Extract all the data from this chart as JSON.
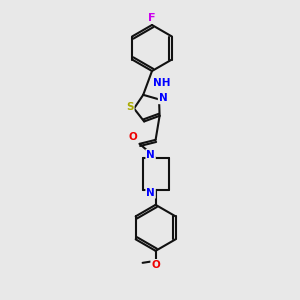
{
  "bg": "#e8e8e8",
  "bond_color": "#111111",
  "bond_lw": 1.5,
  "atom_colors": {
    "F": "#cc00ee",
    "N": "#0000ff",
    "O": "#ee0000",
    "S": "#aaaa00",
    "C": "#111111"
  },
  "fs": 7.5,
  "figsize": [
    3.0,
    3.0
  ],
  "dpi": 100,
  "xlim": [
    0,
    300
  ],
  "ylim": [
    0,
    300
  ]
}
